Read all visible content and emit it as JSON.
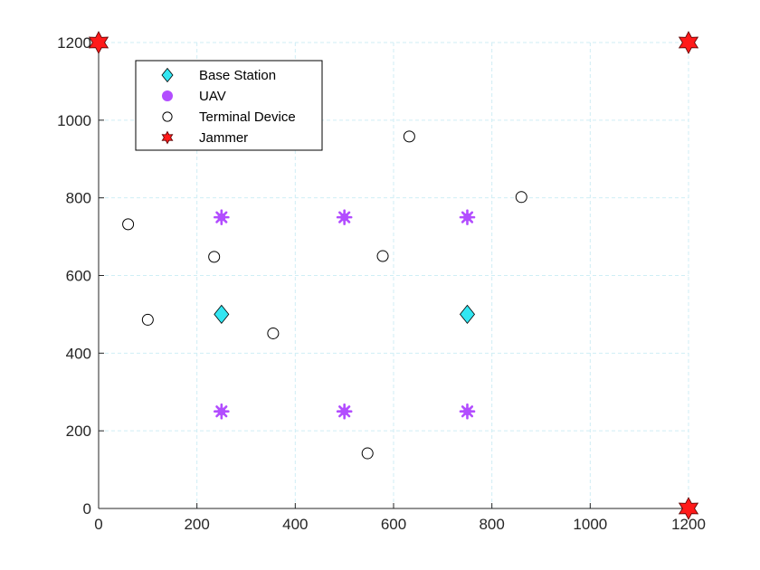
{
  "chart_data": {
    "type": "scatter",
    "xlim": [
      0,
      1200
    ],
    "ylim": [
      0,
      1200
    ],
    "xticks": [
      0,
      200,
      400,
      600,
      800,
      1000,
      1200
    ],
    "yticks": [
      0,
      200,
      400,
      600,
      800,
      1000,
      1200
    ],
    "grid": true,
    "legend_position": "top-left",
    "series": [
      {
        "name": "Base Station",
        "marker": "diamond-icon",
        "color": "#33e6f2",
        "points": [
          [
            250,
            500
          ],
          [
            750,
            500
          ]
        ]
      },
      {
        "name": "UAV",
        "marker": "asterisk-icon",
        "color": "#b24dff",
        "points": [
          [
            250,
            750
          ],
          [
            500,
            750
          ],
          [
            750,
            750
          ],
          [
            250,
            250
          ],
          [
            500,
            250
          ],
          [
            750,
            250
          ]
        ]
      },
      {
        "name": "Terminal Device",
        "marker": "circle-icon",
        "color": "#000000",
        "points": [
          [
            60,
            732
          ],
          [
            100,
            486
          ],
          [
            235,
            648
          ],
          [
            355,
            451
          ],
          [
            578,
            650
          ],
          [
            632,
            958
          ],
          [
            860,
            802
          ],
          [
            547,
            142
          ]
        ]
      },
      {
        "name": "Jammer",
        "marker": "hexagram-icon",
        "color": "#ff1a1a",
        "points": [
          [
            0,
            1200
          ],
          [
            1200,
            1200
          ],
          [
            1200,
            0
          ]
        ]
      }
    ]
  }
}
